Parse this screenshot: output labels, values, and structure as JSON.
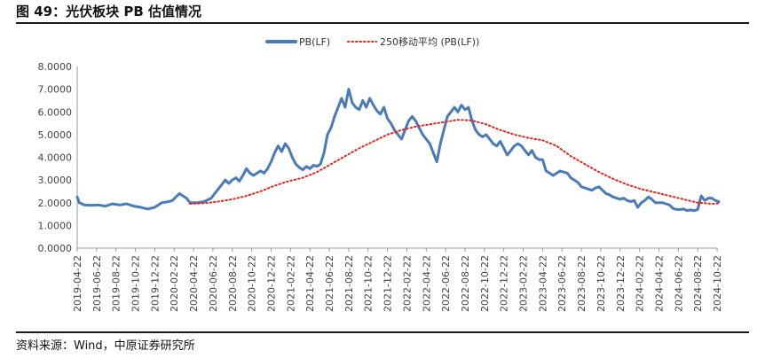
{
  "figure": {
    "title": "图 49：光伏板块 PB 估值情况",
    "source": "资料来源：Wind，中原证券研究所"
  },
  "chart_data": {
    "type": "line",
    "title": "",
    "xlabel": "",
    "ylabel": "",
    "ylim": [
      0,
      8
    ],
    "y_ticks": [
      "8.0000",
      "7.0000",
      "6.0000",
      "5.0000",
      "4.0000",
      "3.0000",
      "2.0000",
      "1.0000",
      "0.0000"
    ],
    "x_ticks": [
      "2019-04-22",
      "2019-06-22",
      "2019-08-22",
      "2019-10-22",
      "2019-12-22",
      "2020-02-22",
      "2020-04-22",
      "2020-06-22",
      "2020-08-22",
      "2020-10-22",
      "2020-12-22",
      "2021-02-22",
      "2021-04-22",
      "2021-06-22",
      "2021-08-22",
      "2021-10-22",
      "2021-12-22",
      "2022-02-22",
      "2022-04-22",
      "2022-06-22",
      "2022-08-22",
      "2022-10-22",
      "2022-12-22",
      "2023-02-22",
      "2023-04-22",
      "2023-06-22",
      "2023-08-22",
      "2023-10-22",
      "2023-12-22",
      "2024-02-22",
      "2024-04-22",
      "2024-06-22",
      "2024-08-22",
      "2024-10-22"
    ],
    "legend_position": "top",
    "grid": false,
    "series": [
      {
        "name": "PB(LF)",
        "color": "#4a7ab8",
        "style": "solid",
        "points": [
          [
            0,
            2.25
          ],
          [
            0.3,
            2.0
          ],
          [
            1,
            1.9
          ],
          [
            2,
            1.88
          ],
          [
            3,
            1.9
          ],
          [
            4,
            1.85
          ],
          [
            5,
            1.95
          ],
          [
            6,
            1.9
          ],
          [
            7,
            1.95
          ],
          [
            8,
            1.85
          ],
          [
            9,
            1.8
          ],
          [
            10,
            1.72
          ],
          [
            11,
            1.8
          ],
          [
            12,
            2.0
          ],
          [
            13,
            2.05
          ],
          [
            13.5,
            2.1
          ],
          [
            14,
            2.25
          ],
          [
            14.5,
            2.4
          ],
          [
            15,
            2.3
          ],
          [
            15.5,
            2.2
          ],
          [
            16,
            2.0
          ],
          [
            17,
            2.0
          ],
          [
            18,
            2.05
          ],
          [
            19,
            2.2
          ],
          [
            19.5,
            2.4
          ],
          [
            20,
            2.6
          ],
          [
            20.5,
            2.8
          ],
          [
            21,
            3.0
          ],
          [
            21.5,
            2.85
          ],
          [
            22,
            3.0
          ],
          [
            22.5,
            3.1
          ],
          [
            23,
            2.95
          ],
          [
            23.5,
            3.2
          ],
          [
            24,
            3.5
          ],
          [
            24.5,
            3.3
          ],
          [
            25,
            3.2
          ],
          [
            25.5,
            3.3
          ],
          [
            26,
            3.4
          ],
          [
            26.5,
            3.3
          ],
          [
            27,
            3.5
          ],
          [
            27.5,
            3.8
          ],
          [
            28,
            4.2
          ],
          [
            28.5,
            4.5
          ],
          [
            29,
            4.25
          ],
          [
            29.5,
            4.6
          ],
          [
            30,
            4.4
          ],
          [
            30.5,
            4.0
          ],
          [
            31,
            3.7
          ],
          [
            31.5,
            3.55
          ],
          [
            32,
            3.45
          ],
          [
            32.5,
            3.6
          ],
          [
            33,
            3.5
          ],
          [
            33.5,
            3.65
          ],
          [
            34,
            3.6
          ],
          [
            34.5,
            3.7
          ],
          [
            35,
            4.2
          ],
          [
            35.5,
            5.0
          ],
          [
            36,
            5.3
          ],
          [
            36.5,
            5.8
          ],
          [
            37,
            6.2
          ],
          [
            37.5,
            6.6
          ],
          [
            38,
            6.2
          ],
          [
            38.5,
            7.0
          ],
          [
            39,
            6.4
          ],
          [
            39.5,
            6.2
          ],
          [
            40,
            6.1
          ],
          [
            40.5,
            6.5
          ],
          [
            41,
            6.2
          ],
          [
            41.5,
            6.6
          ],
          [
            42,
            6.3
          ],
          [
            42.5,
            6.05
          ],
          [
            43,
            5.9
          ],
          [
            43.5,
            6.2
          ],
          [
            44,
            5.7
          ],
          [
            44.5,
            5.5
          ],
          [
            45,
            5.2
          ],
          [
            45.5,
            5.0
          ],
          [
            46,
            4.8
          ],
          [
            46.5,
            5.2
          ],
          [
            47,
            5.6
          ],
          [
            47.5,
            5.8
          ],
          [
            48,
            5.6
          ],
          [
            48.5,
            5.3
          ],
          [
            49,
            5.0
          ],
          [
            49.5,
            4.8
          ],
          [
            50,
            4.6
          ],
          [
            50.5,
            4.2
          ],
          [
            51,
            3.8
          ],
          [
            51.5,
            4.6
          ],
          [
            52,
            5.2
          ],
          [
            52.5,
            5.8
          ],
          [
            53,
            6.0
          ],
          [
            53.5,
            6.2
          ],
          [
            54,
            6.0
          ],
          [
            54.5,
            6.3
          ],
          [
            55,
            6.1
          ],
          [
            55.5,
            6.2
          ],
          [
            56,
            5.6
          ],
          [
            56.5,
            5.2
          ],
          [
            57,
            5.0
          ],
          [
            57.5,
            4.9
          ],
          [
            58,
            5.0
          ],
          [
            58.5,
            4.8
          ],
          [
            59,
            4.6
          ],
          [
            59.5,
            4.5
          ],
          [
            60,
            4.7
          ],
          [
            60.5,
            4.4
          ],
          [
            61,
            4.1
          ],
          [
            61.5,
            4.3
          ],
          [
            62,
            4.5
          ],
          [
            62.5,
            4.6
          ],
          [
            63,
            4.5
          ],
          [
            63.5,
            4.3
          ],
          [
            64,
            4.1
          ],
          [
            64.5,
            4.3
          ],
          [
            65,
            4.0
          ],
          [
            65.5,
            3.9
          ],
          [
            66,
            3.9
          ],
          [
            66.5,
            3.4
          ],
          [
            67,
            3.3
          ],
          [
            67.5,
            3.2
          ],
          [
            68,
            3.3
          ],
          [
            68.5,
            3.4
          ],
          [
            69,
            3.35
          ],
          [
            69.5,
            3.3
          ],
          [
            70,
            3.1
          ],
          [
            70.5,
            3.0
          ],
          [
            71,
            2.9
          ],
          [
            71.5,
            2.7
          ],
          [
            72,
            2.65
          ],
          [
            72.5,
            2.6
          ],
          [
            73,
            2.55
          ],
          [
            73.5,
            2.65
          ],
          [
            74,
            2.7
          ],
          [
            74.5,
            2.55
          ],
          [
            75,
            2.4
          ],
          [
            75.5,
            2.35
          ],
          [
            76,
            2.25
          ],
          [
            76.5,
            2.2
          ],
          [
            77,
            2.15
          ],
          [
            77.5,
            2.2
          ],
          [
            78,
            2.1
          ],
          [
            78.5,
            2.05
          ],
          [
            79,
            2.1
          ],
          [
            79.5,
            1.8
          ],
          [
            80,
            2.0
          ],
          [
            80.5,
            2.1
          ],
          [
            81,
            2.25
          ],
          [
            81.5,
            2.15
          ],
          [
            82,
            2.0
          ],
          [
            82.5,
            2.0
          ],
          [
            83,
            2.0
          ],
          [
            83.5,
            1.95
          ],
          [
            84,
            1.9
          ],
          [
            84.5,
            1.75
          ],
          [
            85,
            1.7
          ],
          [
            85.5,
            1.7
          ],
          [
            86,
            1.72
          ],
          [
            86.5,
            1.65
          ],
          [
            87,
            1.68
          ],
          [
            87.5,
            1.65
          ],
          [
            88,
            1.7
          ],
          [
            88.5,
            2.3
          ],
          [
            89,
            2.1
          ],
          [
            89.5,
            2.2
          ],
          [
            90,
            2.2
          ],
          [
            90.5,
            2.1
          ],
          [
            91,
            2.05
          ]
        ]
      },
      {
        "name": "250移动平均 (PB(LF))",
        "color": "#e8231c",
        "style": "dotted",
        "points": [
          [
            16,
            1.95
          ],
          [
            18,
            1.98
          ],
          [
            20,
            2.05
          ],
          [
            22,
            2.15
          ],
          [
            24,
            2.3
          ],
          [
            26,
            2.5
          ],
          [
            28,
            2.75
          ],
          [
            30,
            2.95
          ],
          [
            32,
            3.1
          ],
          [
            34,
            3.35
          ],
          [
            36,
            3.7
          ],
          [
            38,
            4.05
          ],
          [
            40,
            4.4
          ],
          [
            42,
            4.7
          ],
          [
            44,
            5.0
          ],
          [
            46,
            5.2
          ],
          [
            48,
            5.35
          ],
          [
            50,
            5.45
          ],
          [
            52,
            5.55
          ],
          [
            54,
            5.65
          ],
          [
            56,
            5.62
          ],
          [
            58,
            5.45
          ],
          [
            60,
            5.2
          ],
          [
            62,
            5.0
          ],
          [
            64,
            4.85
          ],
          [
            66,
            4.75
          ],
          [
            68,
            4.5
          ],
          [
            70,
            4.05
          ],
          [
            72,
            3.7
          ],
          [
            74,
            3.35
          ],
          [
            76,
            3.05
          ],
          [
            78,
            2.8
          ],
          [
            80,
            2.6
          ],
          [
            82,
            2.45
          ],
          [
            84,
            2.3
          ],
          [
            86,
            2.15
          ],
          [
            88,
            2.0
          ],
          [
            90,
            1.95
          ],
          [
            91,
            1.97
          ]
        ]
      }
    ]
  }
}
